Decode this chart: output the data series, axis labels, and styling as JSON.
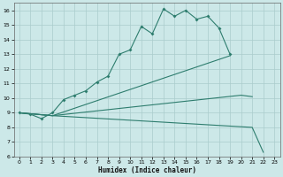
{
  "title": "",
  "xlabel": "Humidex (Indice chaleur)",
  "xlim": [
    -0.5,
    23.5
  ],
  "ylim": [
    6,
    16.5
  ],
  "yticks": [
    6,
    7,
    8,
    9,
    10,
    11,
    12,
    13,
    14,
    15,
    16
  ],
  "xticks": [
    0,
    1,
    2,
    3,
    4,
    5,
    6,
    7,
    8,
    9,
    10,
    11,
    12,
    13,
    14,
    15,
    16,
    17,
    18,
    19,
    20,
    21,
    22,
    23
  ],
  "bg_color": "#cce8e8",
  "grid_color": "#aacccc",
  "line_color": "#2e7d6e",
  "main_line": {
    "x": [
      0,
      1,
      2,
      3,
      4,
      5,
      6,
      7,
      8,
      9,
      10,
      11,
      12,
      13,
      14,
      15,
      16,
      17,
      18,
      19
    ],
    "y": [
      9.0,
      8.9,
      8.6,
      9.0,
      9.9,
      10.2,
      10.5,
      11.1,
      11.5,
      13.0,
      13.3,
      14.9,
      14.4,
      16.1,
      15.6,
      16.0,
      15.4,
      15.6,
      14.8,
      13.0
    ]
  },
  "line1": {
    "x": [
      0,
      3,
      19
    ],
    "y": [
      9.0,
      8.8,
      12.9
    ]
  },
  "line2": {
    "x": [
      0,
      3,
      20,
      21
    ],
    "y": [
      9.0,
      8.8,
      10.2,
      10.1
    ]
  },
  "line3": {
    "x": [
      0,
      3,
      21,
      22
    ],
    "y": [
      9.0,
      8.8,
      8.0,
      6.3
    ]
  }
}
